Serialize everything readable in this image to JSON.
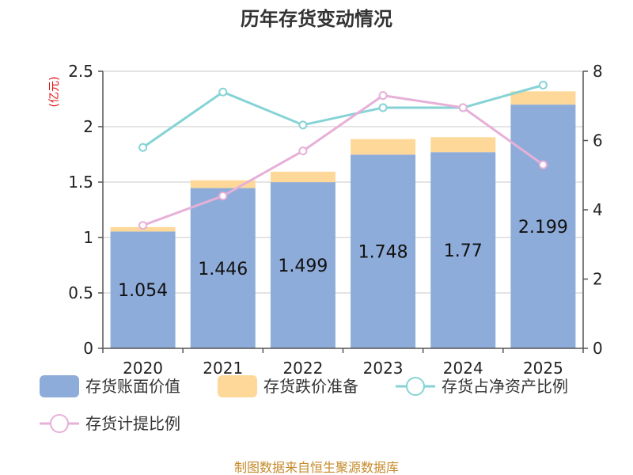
{
  "chart_data": {
    "type": "bar",
    "title": "历年存货变动情况",
    "y_unit": "(亿元)",
    "categories": [
      "2020",
      "2021",
      "2022",
      "2023",
      "2024",
      "2025"
    ],
    "y_left_ticks": [
      "0",
      "0.5",
      "1",
      "1.5",
      "2",
      "2.5"
    ],
    "y_right_ticks": [
      "0",
      "2",
      "4",
      "6",
      "8"
    ],
    "ylim_left": [
      0,
      2.5
    ],
    "ylim_right": [
      0,
      8
    ],
    "series": [
      {
        "name": "存货账面价值",
        "kind": "bar",
        "axis": "left",
        "color": "#8eacd9",
        "values": [
          1.054,
          1.446,
          1.499,
          1.748,
          1.77,
          2.199
        ],
        "labels": [
          "1.054",
          "1.446",
          "1.499",
          "1.748",
          "1.77",
          "2.199"
        ]
      },
      {
        "name": "存货跌价准备",
        "kind": "bar-stack",
        "axis": "left",
        "color": "#fdd899",
        "values": [
          0.04,
          0.07,
          0.095,
          0.14,
          0.135,
          0.12
        ]
      },
      {
        "name": "存货占净资产比例",
        "kind": "line",
        "axis": "right",
        "color": "#86d3d6",
        "values": [
          5.8,
          7.4,
          6.45,
          6.95,
          6.95,
          7.6
        ]
      },
      {
        "name": "存货计提比例",
        "kind": "line",
        "axis": "right",
        "color": "#e6b0d8",
        "values": [
          3.55,
          4.4,
          5.7,
          7.3,
          6.95,
          5.3
        ]
      }
    ],
    "grid": true,
    "legend_position": "bottom"
  },
  "source": "制图数据来自恒生聚源数据库"
}
